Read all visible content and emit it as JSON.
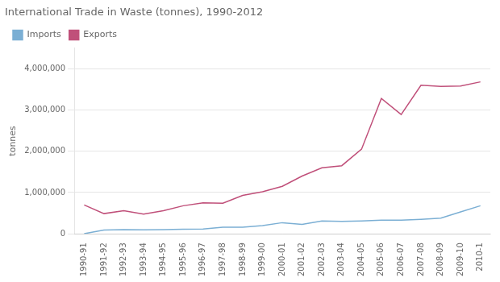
{
  "chart_data": {
    "type": "line",
    "title": "International Trade in Waste (tonnes), 1990-2012",
    "ylabel": "tonnes",
    "categories": [
      "1990-91",
      "1991-92",
      "1992-93",
      "1993-94",
      "1994-95",
      "1995-96",
      "1996-97",
      "1997-98",
      "1998-99",
      "1999-00",
      "2000-01",
      "2001-02",
      "2002-03",
      "2003-04",
      "2004-05",
      "2005-06",
      "2006-07",
      "2007-08",
      "2008-09",
      "2009-10",
      "2010-1"
    ],
    "series": [
      {
        "name": "Imports",
        "color": "#7bafd4",
        "values": [
          5000,
          90000,
          100000,
          95000,
          100000,
          110000,
          115000,
          160000,
          160000,
          200000,
          270000,
          230000,
          310000,
          300000,
          310000,
          330000,
          330000,
          350000,
          380000,
          530000,
          680000
        ]
      },
      {
        "name": "Exports",
        "color": "#c0507a",
        "values": [
          700000,
          490000,
          560000,
          480000,
          560000,
          680000,
          750000,
          740000,
          930000,
          1020000,
          1150000,
          1400000,
          1600000,
          1650000,
          2050000,
          3280000,
          2890000,
          3600000,
          3570000,
          3580000,
          3680000
        ]
      }
    ],
    "ylim": [
      0,
      4500000
    ],
    "yticks": [
      0,
      {
        "value": 1000000,
        "label": "1,000,000"
      },
      {
        "value": 2000000,
        "label": "2,000,000"
      },
      {
        "value": 3000000,
        "label": "3,000,000"
      },
      {
        "value": 4000000,
        "label": "4,000,000"
      }
    ],
    "grid": true,
    "legend": "upper left"
  }
}
